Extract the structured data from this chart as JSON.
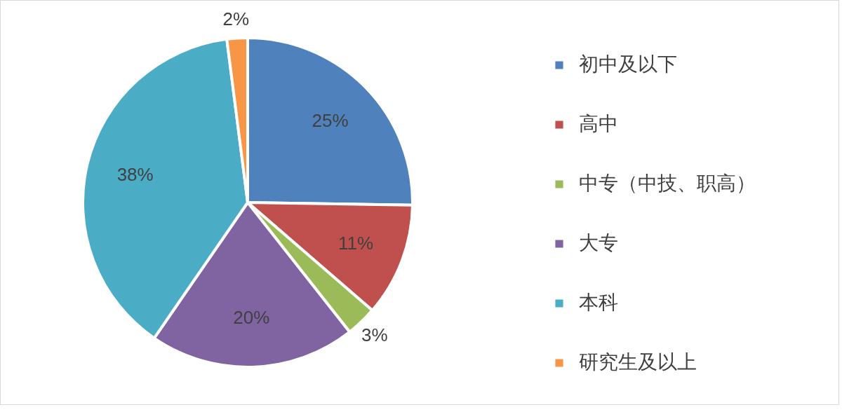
{
  "chart_data": {
    "type": "pie",
    "categories": [
      "初中及以下",
      "高中",
      "中专（中技、职高）",
      "大专",
      "本科",
      "研究生及以上"
    ],
    "values": [
      25,
      11,
      3,
      20,
      38,
      2
    ],
    "colors": [
      "#4f81bd",
      "#c0504d",
      "#9bbb59",
      "#8064a2",
      "#4bacc6",
      "#f79646"
    ],
    "value_labels": [
      "25%",
      "11%",
      "3%",
      "20%",
      "38%",
      "2%"
    ],
    "legend": "right"
  }
}
